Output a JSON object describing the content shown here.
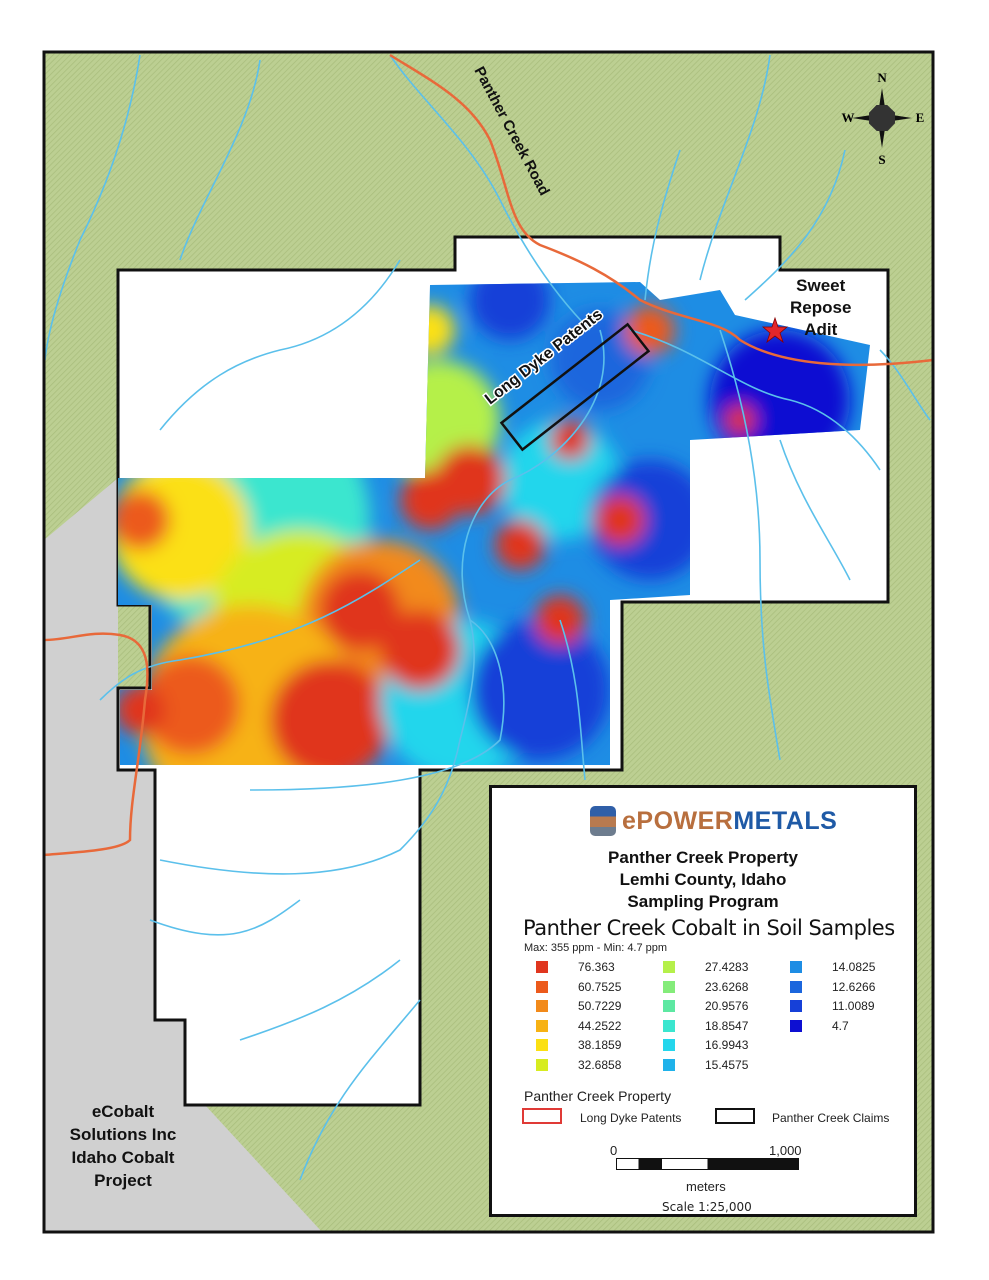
{
  "map": {
    "road_label": "Panther Creek Road",
    "patents_label": "Long Dyke Patents",
    "adit_label": [
      "Sweet",
      "Repose",
      "Adit"
    ],
    "neighbor_label": [
      "eCobalt",
      "Solutions Inc",
      "Idaho Cobalt",
      "Project"
    ],
    "compass": {
      "n": "N",
      "s": "S",
      "e": "E",
      "w": "W"
    },
    "colors": {
      "terrain": "#b9cc8e",
      "claims_fill": "#ffffff",
      "neighbor_fill": "#d0d0d0",
      "stream": "#5bc0eb",
      "road": "#e8693a",
      "adit_star": "#e3262b"
    }
  },
  "legend": {
    "logo": {
      "e": "e",
      "power": "POWER",
      "metals": "METALS"
    },
    "title_lines": [
      "Panther Creek Property",
      "Lemhi County, Idaho",
      "Sampling Program"
    ],
    "subtitle": "Panther Creek Cobalt in Soil Samples",
    "range": "Max: 355 ppm - Min: 4.7 ppm",
    "classes": [
      {
        "value": "76.363",
        "color": "#e0361f"
      },
      {
        "value": "60.7525",
        "color": "#ec5a1c"
      },
      {
        "value": "50.7229",
        "color": "#f28a1a"
      },
      {
        "value": "44.2522",
        "color": "#f7b214"
      },
      {
        "value": "38.1859",
        "color": "#fbe012"
      },
      {
        "value": "32.6858",
        "color": "#d7ec20"
      },
      {
        "value": "27.4283",
        "color": "#b5f04a"
      },
      {
        "value": "23.6268",
        "color": "#84ec7a"
      },
      {
        "value": "20.9576",
        "color": "#5de8a2"
      },
      {
        "value": "18.8547",
        "color": "#3be6cf"
      },
      {
        "value": "16.9943",
        "color": "#24d6ec"
      },
      {
        "value": "15.4575",
        "color": "#1fb2ea"
      },
      {
        "value": "14.0825",
        "color": "#1e8de4"
      },
      {
        "value": "12.6266",
        "color": "#1b66dd"
      },
      {
        "value": "11.0089",
        "color": "#1640d8"
      },
      {
        "value": "4.7",
        "color": "#0d0fd2"
      }
    ],
    "property_heading": "Panther Creek Property",
    "patents": "Long Dyke Patents",
    "claims": "Panther Creek Claims",
    "scale": {
      "zero": "0",
      "max": "1,000",
      "unit": "meters",
      "ratio": "Scale 1:25,000"
    }
  }
}
